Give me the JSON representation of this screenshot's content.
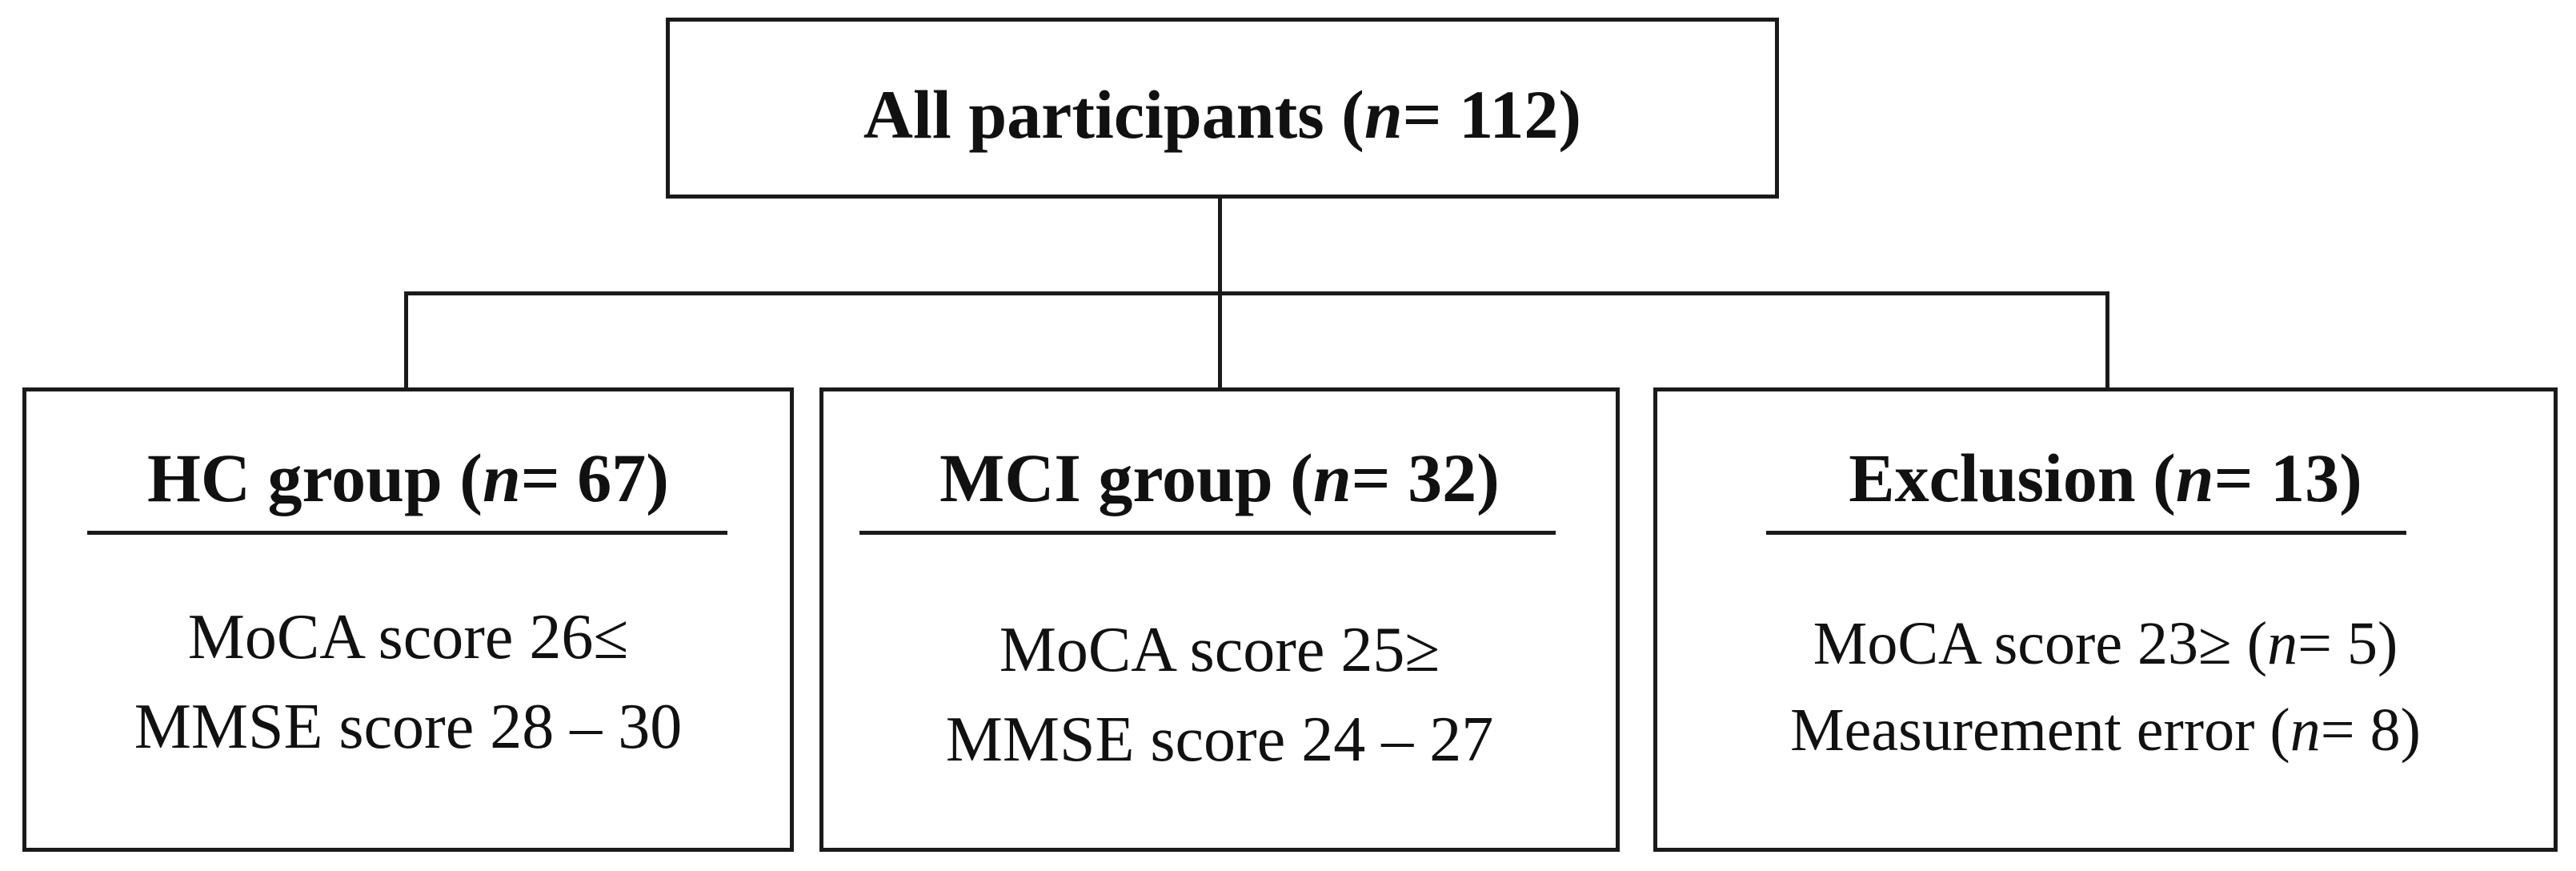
{
  "root": {
    "prefix": "All participants (",
    "n_symbol": "n",
    "suffix": "= 112)"
  },
  "groups": [
    {
      "title_prefix": "HC group (",
      "n_symbol": "n",
      "title_suffix": "= 67)",
      "lines": [
        "MoCA score 26≤",
        "MMSE score 28 – 30"
      ]
    },
    {
      "title_prefix": "MCI group (",
      "n_symbol": "n",
      "title_suffix": "= 32)",
      "lines": [
        "MoCA score 25≥",
        "MMSE score 24 – 27"
      ]
    },
    {
      "title_prefix": "Exclusion (",
      "n_symbol": "n",
      "title_suffix": "= 13)",
      "lines": [
        {
          "prefix": "MoCA score 23≥ (",
          "n_symbol": "n",
          "suffix": "= 5)"
        },
        {
          "prefix": "Measurement error (",
          "n_symbol": "n",
          "suffix": "= 8)"
        }
      ]
    }
  ]
}
